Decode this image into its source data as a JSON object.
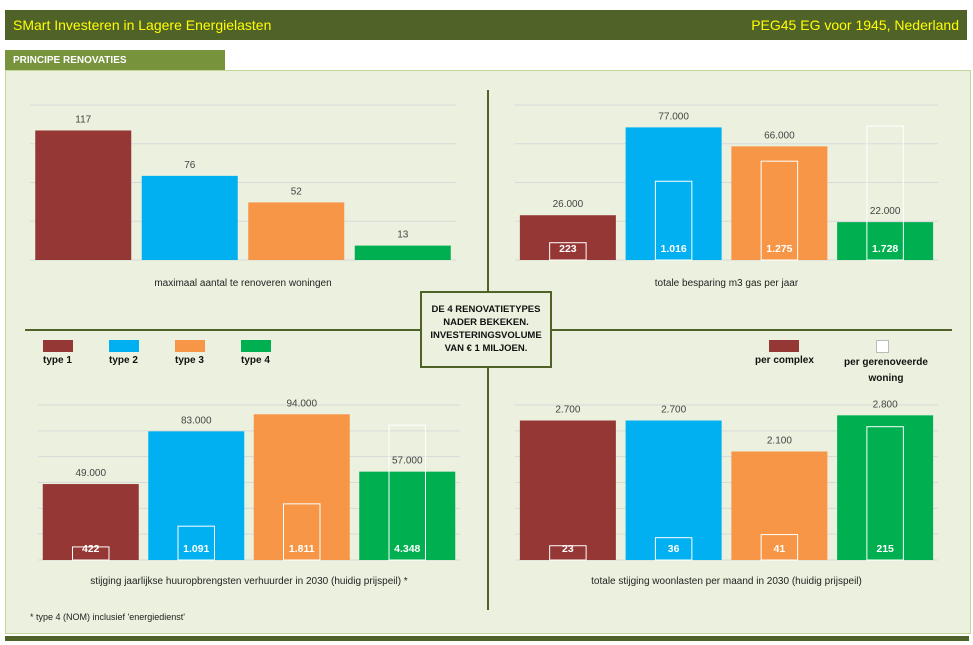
{
  "header": {
    "title_left": "SMart Investeren in Lagere Energielasten",
    "title_right": "PEG45  EG voor 1945, Nederland"
  },
  "section_tab": "PRINCIPE RENOVATIES",
  "center_box": [
    "DE 4 RENOVATIETYPES",
    "NADER BEKEKEN.",
    "INVESTERINGSVOLUME",
    "VAN € 1 MILJOEN."
  ],
  "legend": {
    "types": [
      {
        "label": "type 1",
        "color": "#953735"
      },
      {
        "label": "type 2",
        "color": "#00b0f0"
      },
      {
        "label": "type 3",
        "color": "#f79646"
      },
      {
        "label": "type 4",
        "color": "#00b050"
      }
    ],
    "per_complex": "per complex",
    "per_woning_line1": "per gerenoveerde",
    "per_woning_line2": "woning"
  },
  "footnote": "* type 4 (NOM) inclusief 'energiedienst'",
  "chart_data": [
    {
      "type": "bar",
      "xlabel": "maximaal aantal te renoveren woningen",
      "categories": [
        "type 1",
        "type 2",
        "type 3",
        "type 4"
      ],
      "values": [
        117,
        76,
        52,
        13
      ],
      "value_labels": [
        "117",
        "76",
        "52",
        "13"
      ],
      "ylim": [
        0,
        140
      ],
      "grid": true
    },
    {
      "type": "bar",
      "xlabel": "totale besparing m3 gas per jaar",
      "categories": [
        "type 1",
        "type 2",
        "type 3",
        "type 4"
      ],
      "series": [
        {
          "name": "per complex",
          "values": [
            26000,
            77000,
            66000,
            22000
          ],
          "labels": [
            "26.000",
            "77.000",
            "66.000",
            "22.000"
          ]
        },
        {
          "name": "per gerenoveerde woning",
          "values": [
            223,
            1016,
            1275,
            1728
          ],
          "labels": [
            "223",
            "1.016",
            "1.275",
            "1.728"
          ]
        }
      ],
      "ylim": [
        0,
        90000
      ],
      "ylim_secondary": [
        0,
        2000
      ],
      "grid": true
    },
    {
      "type": "bar",
      "xlabel": "stijging jaarlijkse huuropbrengsten verhuurder in 2030 (huidig prijspeil) *",
      "categories": [
        "type 1",
        "type 2",
        "type 3",
        "type 4"
      ],
      "series": [
        {
          "name": "per complex",
          "values": [
            49000,
            83000,
            94000,
            57000
          ],
          "labels": [
            "49.000",
            "83.000",
            "94.000",
            "57.000"
          ]
        },
        {
          "name": "per gerenoveerde woning",
          "values": [
            422,
            1091,
            1811,
            4348
          ],
          "labels": [
            "422",
            "1.091",
            "1.811",
            "4.348"
          ]
        }
      ],
      "ylim": [
        0,
        100000
      ],
      "ylim_secondary": [
        0,
        5000
      ],
      "grid": true
    },
    {
      "type": "bar",
      "xlabel": "totale stijging woonlasten per maand in 2030 (huidig prijspeil)",
      "categories": [
        "type 1",
        "type 2",
        "type 3",
        "type 4"
      ],
      "series": [
        {
          "name": "per complex",
          "values": [
            2700,
            2700,
            2100,
            2800
          ],
          "labels": [
            "2.700",
            "2.700",
            "2.100",
            "2.800"
          ]
        },
        {
          "name": "per gerenoveerde woning",
          "values": [
            23,
            36,
            41,
            215
          ],
          "labels": [
            "23",
            "36",
            "41",
            "215"
          ]
        }
      ],
      "ylim": [
        0,
        3000
      ],
      "ylim_secondary": [
        0,
        250
      ],
      "grid": true
    }
  ]
}
